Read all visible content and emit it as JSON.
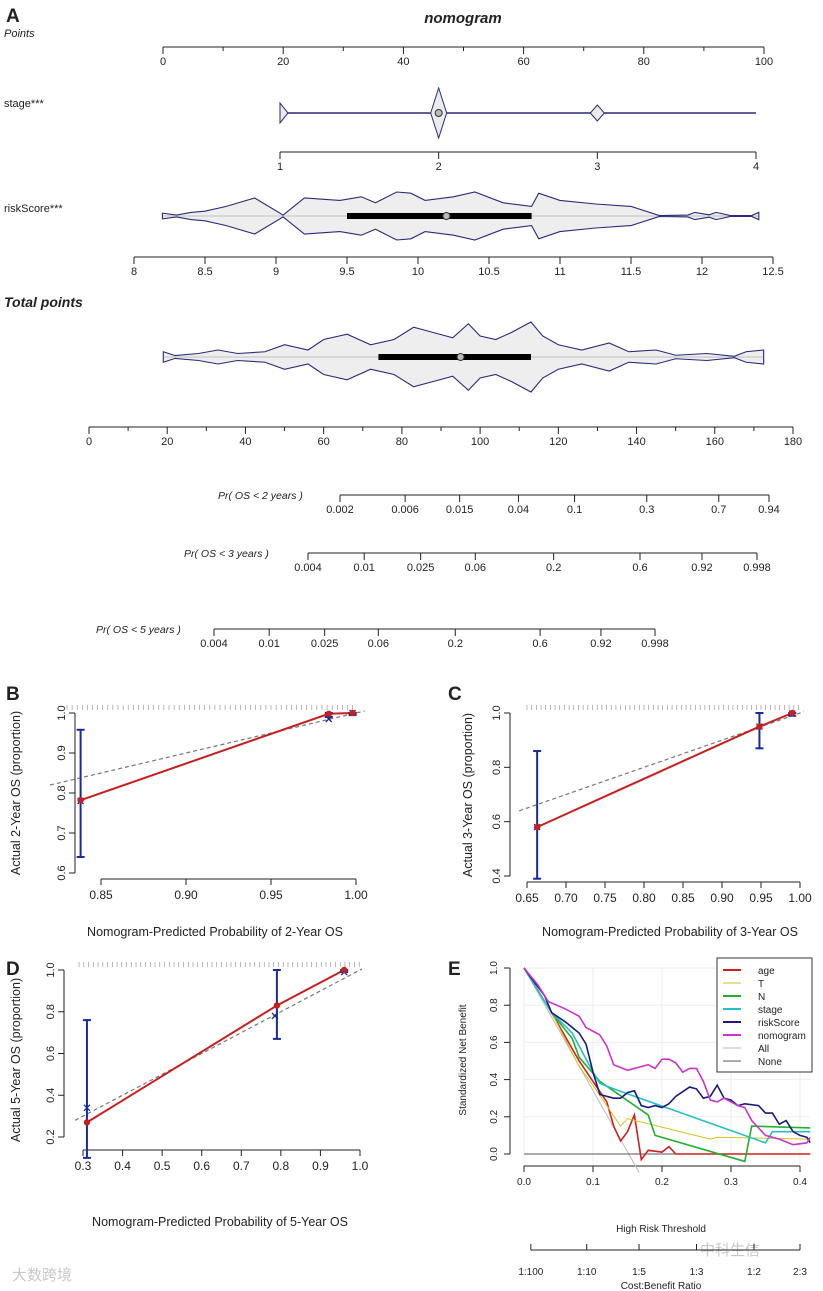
{
  "chart_data": [
    {
      "panel": "A",
      "type": "nomogram",
      "title": "nomogram",
      "points": {
        "label": "Points",
        "ticks": [
          "0",
          "20",
          "40",
          "60",
          "80",
          "100"
        ],
        "range": [
          0,
          100
        ]
      },
      "stage": {
        "label": "stage***",
        "ticks": [
          "1",
          "2",
          "3",
          "4"
        ],
        "range": [
          1,
          4
        ],
        "density": [
          [
            1,
            0.45
          ],
          [
            2,
            1.0
          ],
          [
            3,
            0.45
          ],
          [
            4,
            0.05
          ]
        ],
        "median": 2
      },
      "riskScore": {
        "label": "riskScore***",
        "ticks": [
          "8",
          "8.5",
          "9",
          "9.5",
          "10",
          "10.5",
          "11",
          "11.5",
          "12",
          "12.5"
        ],
        "range": [
          8,
          12.5
        ],
        "box": [
          9.5,
          10.8
        ],
        "median": 10.2,
        "density": [
          [
            8.2,
            0.12
          ],
          [
            8.3,
            0.04
          ],
          [
            8.4,
            0.15
          ],
          [
            8.5,
            0.2
          ],
          [
            8.65,
            0.4
          ],
          [
            8.85,
            0.75
          ],
          [
            9.05,
            0.04
          ],
          [
            9.2,
            0.75
          ],
          [
            9.45,
            0.65
          ],
          [
            9.6,
            0.8
          ],
          [
            9.7,
            0.55
          ],
          [
            9.85,
            1.0
          ],
          [
            9.95,
            0.95
          ],
          [
            10.05,
            0.65
          ],
          [
            10.25,
            0.8
          ],
          [
            10.4,
            1.0
          ],
          [
            10.6,
            0.55
          ],
          [
            10.8,
            0.4
          ],
          [
            10.85,
            0.95
          ],
          [
            11.0,
            0.65
          ],
          [
            11.25,
            0.5
          ],
          [
            11.5,
            0.4
          ],
          [
            11.7,
            0.02
          ],
          [
            11.9,
            0.04
          ],
          [
            11.95,
            0.15
          ],
          [
            12.05,
            0.05
          ],
          [
            12.1,
            0.15
          ],
          [
            12.2,
            0.02
          ],
          [
            12.35,
            0.02
          ],
          [
            12.4,
            0.15
          ]
        ]
      },
      "total_points": {
        "label": "Total points",
        "ticks": [
          "0",
          "20",
          "40",
          "60",
          "80",
          "100",
          "120",
          "140",
          "160",
          "180"
        ],
        "range": [
          0,
          180
        ],
        "box": [
          74,
          113
        ],
        "median": 95,
        "density": [
          [
            19,
            0.15
          ],
          [
            22,
            0.04
          ],
          [
            28,
            0.1
          ],
          [
            33,
            0.2
          ],
          [
            38,
            0.1
          ],
          [
            45,
            0.15
          ],
          [
            50,
            0.35
          ],
          [
            56,
            0.2
          ],
          [
            60,
            0.5
          ],
          [
            66,
            0.65
          ],
          [
            72,
            0.35
          ],
          [
            78,
            0.5
          ],
          [
            83,
            0.85
          ],
          [
            88,
            0.7
          ],
          [
            93,
            0.55
          ],
          [
            97,
            0.95
          ],
          [
            100,
            0.6
          ],
          [
            104,
            0.5
          ],
          [
            108,
            0.7
          ],
          [
            113,
            1.0
          ],
          [
            116,
            0.6
          ],
          [
            120,
            0.35
          ],
          [
            126,
            0.2
          ],
          [
            133,
            0.4
          ],
          [
            138,
            0.15
          ],
          [
            145,
            0.2
          ],
          [
            150,
            0.05
          ],
          [
            158,
            0.1
          ],
          [
            165,
            0.02
          ],
          [
            168,
            0.15
          ],
          [
            172.5,
            0.2
          ]
        ]
      },
      "probabilities": [
        {
          "label": "Pr( OS < 2 years )",
          "ticks": [
            "0.002",
            "0.006",
            "0.015",
            "0.04",
            "0.1",
            "0.3",
            "0.7",
            "0.94"
          ]
        },
        {
          "label": "Pr( OS < 3 years )",
          "ticks": [
            "0.004",
            "0.01",
            "0.025",
            "0.06",
            "0.2",
            "0.6",
            "0.92",
            "0.998"
          ]
        },
        {
          "label": "Pr( OS < 5 years )",
          "ticks": [
            "0.004",
            "0.01",
            "0.025",
            "0.06",
            "0.2",
            "0.6",
            "0.92",
            "0.998"
          ]
        }
      ]
    },
    {
      "panel": "B",
      "type": "scatter",
      "xlabel": "Nomogram-Predicted Probability of 2-Year OS",
      "ylabel": "Actual 2-Year OS (proportion)",
      "xticks": [
        "0.85",
        "0.90",
        "0.95",
        "1.00"
      ],
      "yticks": [
        "0.6",
        "0.7",
        "0.8",
        "0.9",
        "1.0"
      ],
      "xlim": [
        0.82,
        1.005
      ],
      "ylim": [
        0.6,
        1.0
      ],
      "points": [
        {
          "x": 0.838,
          "y": 0.782,
          "lo": 0.64,
          "hi": 0.958,
          "x_cor": 0.838,
          "y_cor": 0.78
        },
        {
          "x": 0.984,
          "y": 0.998,
          "lo": 0.99,
          "hi": 1.0,
          "x_cor": 0.984,
          "y_cor": 0.985
        },
        {
          "x": 0.998,
          "y": 1.0,
          "lo": 0.995,
          "hi": 1.0,
          "x_cor": 0.998,
          "y_cor": 1.0
        }
      ]
    },
    {
      "panel": "C",
      "type": "scatter",
      "xlabel": "Nomogram-Predicted Probability of 3-Year OS",
      "ylabel": "Actual 3-Year OS (proportion)",
      "xticks": [
        "0.65",
        "0.70",
        "0.75",
        "0.80",
        "0.85",
        "0.90",
        "0.95",
        "1.00"
      ],
      "yticks": [
        "0.4",
        "0.6",
        "0.8",
        "1.0"
      ],
      "xlim": [
        0.64,
        1.005
      ],
      "ylim": [
        0.4,
        1.0
      ],
      "points": [
        {
          "x": 0.663,
          "y": 0.58,
          "lo": 0.39,
          "hi": 0.86,
          "x_cor": 0.663,
          "y_cor": 0.58
        },
        {
          "x": 0.948,
          "y": 0.95,
          "lo": 0.87,
          "hi": 1.0,
          "x_cor": 0.948,
          "y_cor": 0.95
        },
        {
          "x": 0.99,
          "y": 1.0,
          "lo": 0.99,
          "hi": 1.0,
          "x_cor": 0.99,
          "y_cor": 0.998
        }
      ]
    },
    {
      "panel": "D",
      "type": "scatter",
      "xlabel": "Nomogram-Predicted Probability of 5-Year OS",
      "ylabel": "Actual 5-Year OS (proportion)",
      "xticks": [
        "0.3",
        "0.4",
        "0.5",
        "0.6",
        "0.7",
        "0.8",
        "0.9",
        "1.0"
      ],
      "yticks": [
        "0.2",
        "0.4",
        "0.6",
        "0.8",
        "1.0"
      ],
      "xlim": [
        0.28,
        1.005
      ],
      "ylim": [
        0.2,
        1.0
      ],
      "points": [
        {
          "x": 0.31,
          "y": 0.27,
          "lo": 0.1,
          "hi": 0.76,
          "x_cor": 0.31,
          "y_cor": 0.34
        },
        {
          "x": 0.79,
          "y": 0.83,
          "lo": 0.67,
          "hi": 1.0,
          "x_cor": 0.785,
          "y_cor": 0.78
        },
        {
          "x": 0.96,
          "y": 1.0,
          "lo": 0.99,
          "hi": 1.0,
          "x_cor": 0.96,
          "y_cor": 0.99
        }
      ]
    },
    {
      "panel": "E",
      "type": "line",
      "xlabel": "High Risk Threshold",
      "ylabel": "Standardized Net Benefit",
      "xticks": [
        "0.0",
        "0.1",
        "0.2",
        "0.3",
        "0.4"
      ],
      "yticks": [
        "0.0",
        "0.2",
        "0.4",
        "0.6",
        "0.8",
        "1.0"
      ],
      "xlim": [
        0,
        0.415
      ],
      "ylim": [
        -0.1,
        1.0
      ],
      "cost_benefit": {
        "label": "Cost:Benefit Ratio",
        "ticks": [
          {
            "label": "1:100",
            "x": 0.0099
          },
          {
            "label": "1:10",
            "x": 0.0909
          },
          {
            "label": "1:5",
            "x": 0.1667
          },
          {
            "label": "1:3",
            "x": 0.25
          },
          {
            "label": "1:2",
            "x": 0.3333
          },
          {
            "label": "2:3",
            "x": 0.4
          }
        ]
      },
      "legend_position": "top-right",
      "series": [
        {
          "name": "age",
          "color": "#cc2020",
          "points": [
            [
              0,
              1
            ],
            [
              0.04,
              0.76
            ],
            [
              0.08,
              0.5
            ],
            [
              0.12,
              0.28
            ],
            [
              0.13,
              0.15
            ],
            [
              0.14,
              0.07
            ],
            [
              0.15,
              0.12
            ],
            [
              0.16,
              0.21
            ],
            [
              0.17,
              -0.03
            ],
            [
              0.18,
              0.02
            ],
            [
              0.2,
              0.01
            ],
            [
              0.21,
              0.04
            ],
            [
              0.22,
              0
            ],
            [
              0.415,
              0
            ]
          ]
        },
        {
          "name": "T",
          "color": "#d4c21a",
          "points": [
            [
              0,
              1
            ],
            [
              0.04,
              0.76
            ],
            [
              0.08,
              0.47
            ],
            [
              0.1,
              0.37
            ],
            [
              0.14,
              0.15
            ],
            [
              0.15,
              0.19
            ],
            [
              0.27,
              0.08
            ],
            [
              0.28,
              0.09
            ],
            [
              0.415,
              0.08
            ]
          ]
        },
        {
          "name": "N",
          "color": "#22b030",
          "points": [
            [
              0,
              1
            ],
            [
              0.04,
              0.76
            ],
            [
              0.07,
              0.62
            ],
            [
              0.08,
              0.52
            ],
            [
              0.11,
              0.39
            ],
            [
              0.18,
              0.21
            ],
            [
              0.19,
              0.1
            ],
            [
              0.32,
              -0.04
            ],
            [
              0.33,
              0.15
            ],
            [
              0.415,
              0.14
            ]
          ]
        },
        {
          "name": "stage",
          "color": "#22c0c8",
          "points": [
            [
              0,
              1
            ],
            [
              0.04,
              0.76
            ],
            [
              0.07,
              0.65
            ],
            [
              0.1,
              0.44
            ],
            [
              0.11,
              0.38
            ],
            [
              0.13,
              0.35
            ],
            [
              0.35,
              0.06
            ],
            [
              0.36,
              0.12
            ],
            [
              0.415,
              0.12
            ]
          ]
        },
        {
          "name": "riskScore",
          "color": "#1a1a7a",
          "points": [
            [
              0,
              1
            ],
            [
              0.03,
              0.85
            ],
            [
              0.04,
              0.76
            ],
            [
              0.06,
              0.71
            ],
            [
              0.08,
              0.65
            ],
            [
              0.09,
              0.59
            ],
            [
              0.1,
              0.44
            ],
            [
              0.11,
              0.32
            ],
            [
              0.13,
              0.3
            ],
            [
              0.14,
              0.3
            ],
            [
              0.15,
              0.33
            ],
            [
              0.16,
              0.34
            ],
            [
              0.17,
              0.26
            ],
            [
              0.18,
              0.25
            ],
            [
              0.19,
              0.26
            ],
            [
              0.2,
              0.25
            ],
            [
              0.21,
              0.27
            ],
            [
              0.22,
              0.31
            ],
            [
              0.24,
              0.36
            ],
            [
              0.25,
              0.35
            ],
            [
              0.26,
              0.3
            ],
            [
              0.27,
              0.31
            ],
            [
              0.28,
              0.37
            ],
            [
              0.29,
              0.3
            ],
            [
              0.3,
              0.29
            ],
            [
              0.31,
              0.26
            ],
            [
              0.32,
              0.27
            ],
            [
              0.34,
              0.26
            ],
            [
              0.35,
              0.22
            ],
            [
              0.36,
              0.22
            ],
            [
              0.37,
              0.16
            ],
            [
              0.38,
              0.18
            ],
            [
              0.39,
              0.12
            ],
            [
              0.4,
              0.1
            ],
            [
              0.41,
              0.09
            ],
            [
              0.415,
              0.06
            ]
          ]
        },
        {
          "name": "nomogram",
          "color": "#cc33cc",
          "points": [
            [
              0,
              1
            ],
            [
              0.02,
              0.91
            ],
            [
              0.035,
              0.82
            ],
            [
              0.06,
              0.78
            ],
            [
              0.08,
              0.74
            ],
            [
              0.09,
              0.68
            ],
            [
              0.1,
              0.66
            ],
            [
              0.11,
              0.64
            ],
            [
              0.12,
              0.58
            ],
            [
              0.13,
              0.48
            ],
            [
              0.15,
              0.45
            ],
            [
              0.16,
              0.46
            ],
            [
              0.18,
              0.48
            ],
            [
              0.19,
              0.46
            ],
            [
              0.2,
              0.51
            ],
            [
              0.21,
              0.51
            ],
            [
              0.22,
              0.49
            ],
            [
              0.23,
              0.44
            ],
            [
              0.24,
              0.46
            ],
            [
              0.25,
              0.46
            ],
            [
              0.26,
              0.39
            ],
            [
              0.27,
              0.29
            ],
            [
              0.28,
              0.28
            ],
            [
              0.29,
              0.3
            ],
            [
              0.3,
              0.28
            ],
            [
              0.31,
              0.26
            ],
            [
              0.32,
              0.25
            ],
            [
              0.33,
              0.18
            ],
            [
              0.35,
              0.1
            ],
            [
              0.37,
              0.08
            ],
            [
              0.39,
              0.05
            ],
            [
              0.41,
              0.06
            ],
            [
              0.415,
              0.09
            ]
          ]
        },
        {
          "name": "All",
          "color": "#bbbbbb",
          "points": [
            [
              0,
              1
            ],
            [
              0.167,
              -0.1
            ]
          ]
        },
        {
          "name": "None",
          "color": "#555555",
          "points": [
            [
              0,
              0
            ],
            [
              0.415,
              0
            ]
          ]
        }
      ]
    }
  ],
  "watermarks": [
    "大数跨境",
    "中科生信"
  ]
}
